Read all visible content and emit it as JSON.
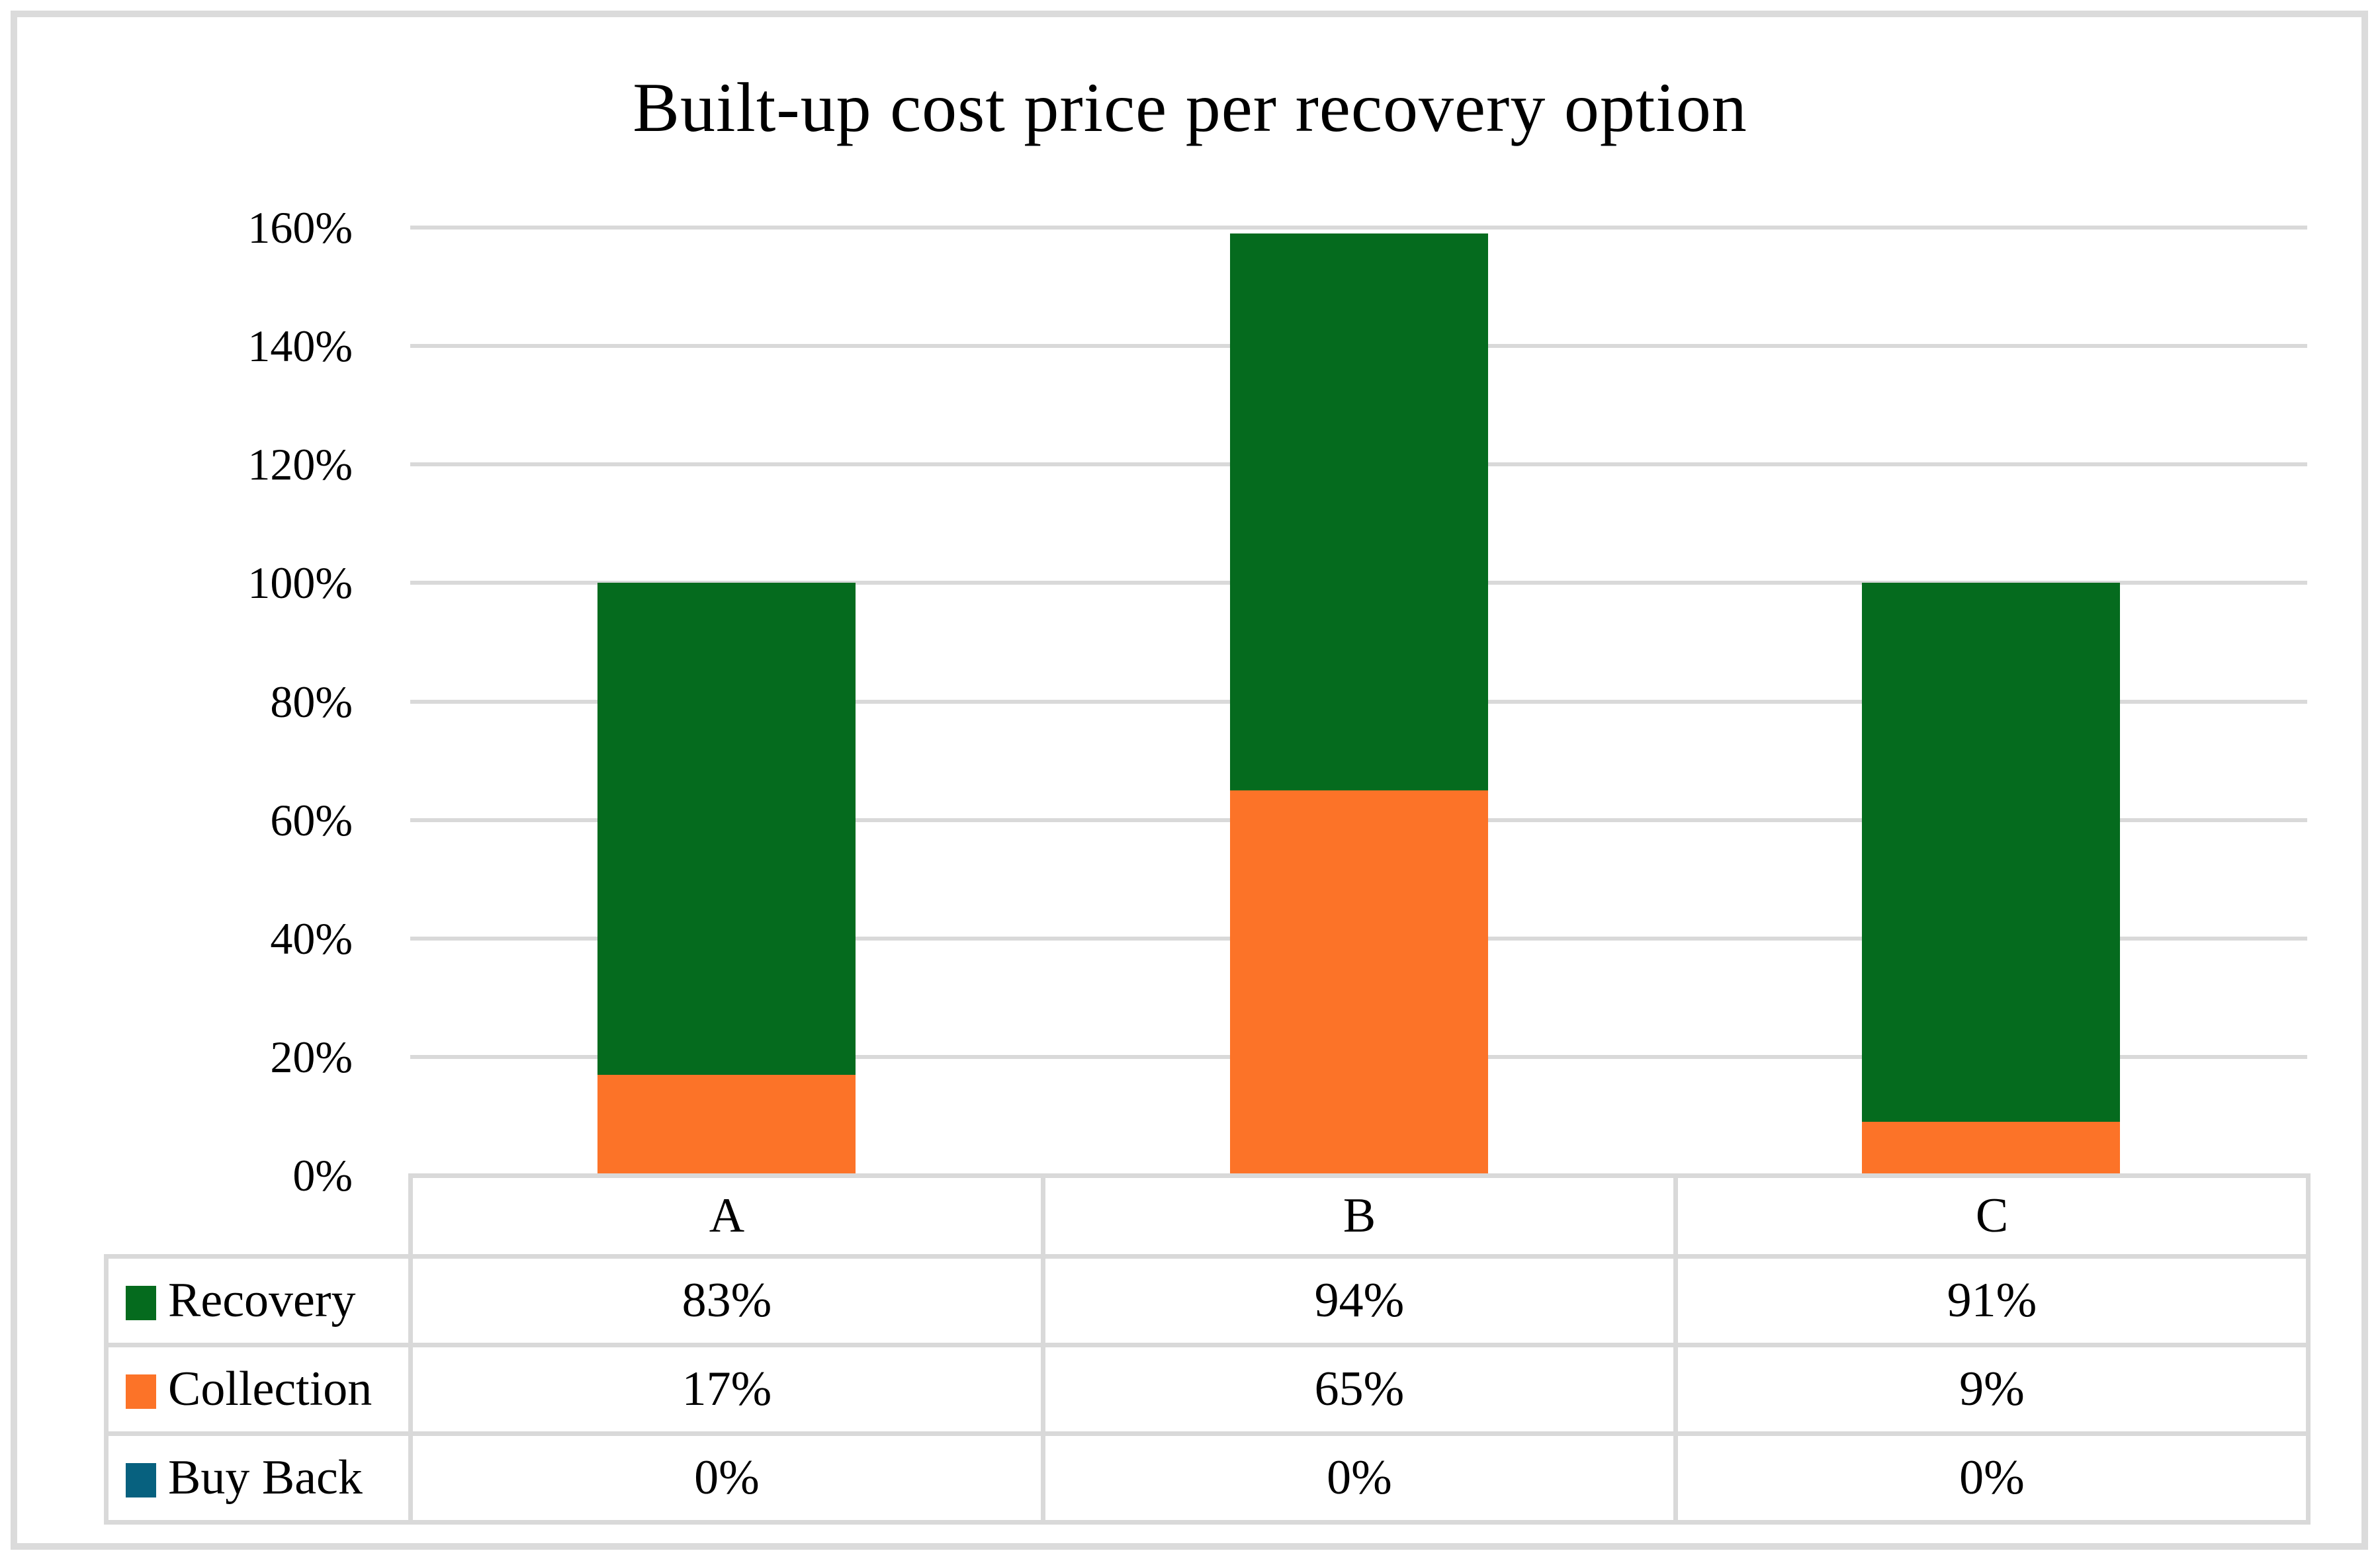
{
  "title": "Built-up cost price per recovery option",
  "colors": {
    "grid": "#D9D9D9",
    "frame": "#DBDBDB",
    "text": "#000000",
    "background": "#FFFFFF"
  },
  "chart_data": {
    "type": "bar",
    "stacked": true,
    "title": "Built-up cost price per recovery option",
    "xlabel": "",
    "ylabel": "",
    "categories": [
      "A",
      "B",
      "C"
    ],
    "series": [
      {
        "name": "Recovery",
        "color": "#056B1E",
        "values_pct": [
          83,
          94,
          91
        ],
        "labels": [
          "83%",
          "94%",
          "91%"
        ]
      },
      {
        "name": "Collection",
        "color": "#FC7328",
        "values_pct": [
          17,
          65,
          9
        ],
        "labels": [
          "17%",
          "65%",
          "9%"
        ]
      },
      {
        "name": "Buy Back",
        "color": "#07617F",
        "values_pct": [
          0,
          0,
          0
        ],
        "labels": [
          "0%",
          "0%",
          "0%"
        ]
      }
    ],
    "stack_order_bottom_to_top": [
      "Buy Back",
      "Collection",
      "Recovery"
    ],
    "bar_totals_pct": [
      100,
      159,
      100
    ],
    "ylim": [
      0,
      160
    ],
    "ytick_step": 20,
    "ytick_labels": [
      "0%",
      "20%",
      "40%",
      "60%",
      "80%",
      "100%",
      "120%",
      "140%",
      "160%"
    ],
    "grid": true,
    "legend_position": "left column of data table below chart"
  }
}
